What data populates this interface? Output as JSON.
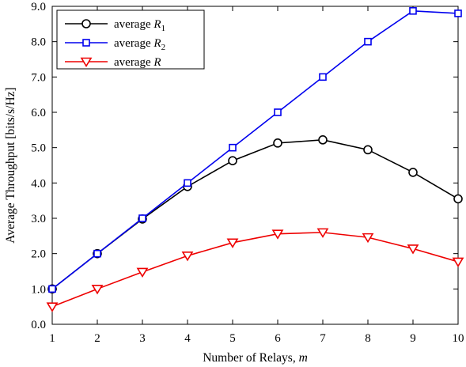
{
  "chart_data": {
    "type": "line",
    "xlabel": "Number of Relays, m",
    "xlabel_parts": {
      "prefix": "Number of Relays, ",
      "var": "m"
    },
    "ylabel": "Average Throughput [bits/s/Hz]",
    "xlim": [
      1,
      10
    ],
    "ylim": [
      0,
      9
    ],
    "x": [
      1,
      2,
      3,
      4,
      5,
      6,
      7,
      8,
      9,
      10
    ],
    "x_ticks": [
      "1",
      "2",
      "3",
      "4",
      "5",
      "6",
      "7",
      "8",
      "9",
      "10"
    ],
    "y_ticks": [
      "0.0",
      "1.0",
      "2.0",
      "3.0",
      "4.0",
      "5.0",
      "6.0",
      "7.0",
      "8.0",
      "9.0"
    ],
    "grid": false,
    "legend_position": "top-left",
    "series": [
      {
        "name": "average R1",
        "legend_text": "average ",
        "legend_var": "R",
        "legend_sub": "1",
        "color": "#000000",
        "marker": "circle",
        "values": [
          1.0,
          2.0,
          2.98,
          3.9,
          4.63,
          5.13,
          5.22,
          4.94,
          4.3,
          3.55
        ]
      },
      {
        "name": "average R2",
        "legend_text": "average ",
        "legend_var": "R",
        "legend_sub": "2",
        "color": "#0000ee",
        "marker": "square",
        "values": [
          1.0,
          2.0,
          3.0,
          4.0,
          5.0,
          6.0,
          7.0,
          8.0,
          8.87,
          8.8
        ]
      },
      {
        "name": "average R",
        "legend_text": "average ",
        "legend_var": "R",
        "legend_sub": "",
        "color": "#ee0000",
        "marker": "triangle-down",
        "values": [
          0.5,
          1.0,
          1.48,
          1.94,
          2.31,
          2.56,
          2.6,
          2.46,
          2.14,
          1.77
        ]
      }
    ]
  }
}
